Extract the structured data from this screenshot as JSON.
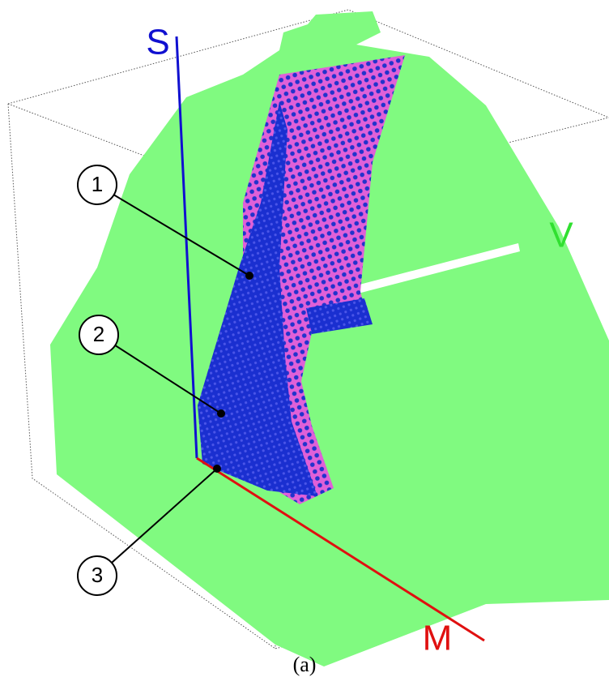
{
  "axes": {
    "s": "S",
    "v": "V",
    "m": "M"
  },
  "markers": [
    {
      "label": "1"
    },
    {
      "label": "2"
    },
    {
      "label": "3"
    }
  ],
  "caption": "(a)"
}
